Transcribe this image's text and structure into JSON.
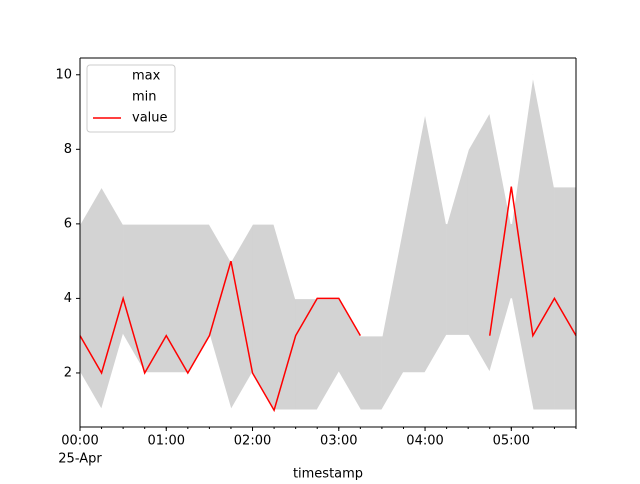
{
  "chart_data": {
    "type": "line",
    "x": [
      "00:00",
      "00:15",
      "00:30",
      "00:45",
      "01:00",
      "01:15",
      "01:30",
      "01:45",
      "02:00",
      "02:15",
      "02:30",
      "02:45",
      "03:00",
      "03:15",
      "03:30",
      "03:45",
      "04:00",
      "04:15",
      "04:30",
      "04:45",
      "05:00",
      "05:15",
      "05:30",
      "05:45"
    ],
    "series": [
      {
        "name": "max",
        "color": "#ffffff",
        "values": [
          6,
          7,
          6,
          6,
          6,
          6,
          6,
          5,
          6,
          6,
          4,
          4,
          4,
          3,
          3,
          6,
          9,
          6,
          8,
          9,
          6,
          10,
          7,
          7
        ]
      },
      {
        "name": "min",
        "color": "#ffffff",
        "values": [
          2,
          1,
          3,
          2,
          2,
          2,
          3,
          1,
          2,
          1,
          1,
          1,
          2,
          1,
          1,
          2,
          2,
          3,
          3,
          2,
          4,
          1,
          1,
          1
        ]
      },
      {
        "name": "value",
        "color": "#ff0000",
        "values": [
          3,
          2,
          4,
          2,
          3,
          2,
          3,
          5,
          2,
          1,
          3,
          4,
          4,
          3,
          null,
          null,
          null,
          null,
          null,
          3,
          7,
          3,
          4,
          3
        ]
      }
    ],
    "fill_color": "#d3d3d3",
    "xlabel": "timestamp",
    "xlim": [
      "00:00",
      "05:45"
    ],
    "xticks": [
      "00:00",
      "01:00",
      "02:00",
      "03:00",
      "04:00",
      "05:00"
    ],
    "date_label": "25-Apr",
    "ylim": [
      0.55,
      10.45
    ],
    "yticks": [
      2,
      4,
      6,
      8,
      10
    ],
    "legend": "upper left"
  }
}
